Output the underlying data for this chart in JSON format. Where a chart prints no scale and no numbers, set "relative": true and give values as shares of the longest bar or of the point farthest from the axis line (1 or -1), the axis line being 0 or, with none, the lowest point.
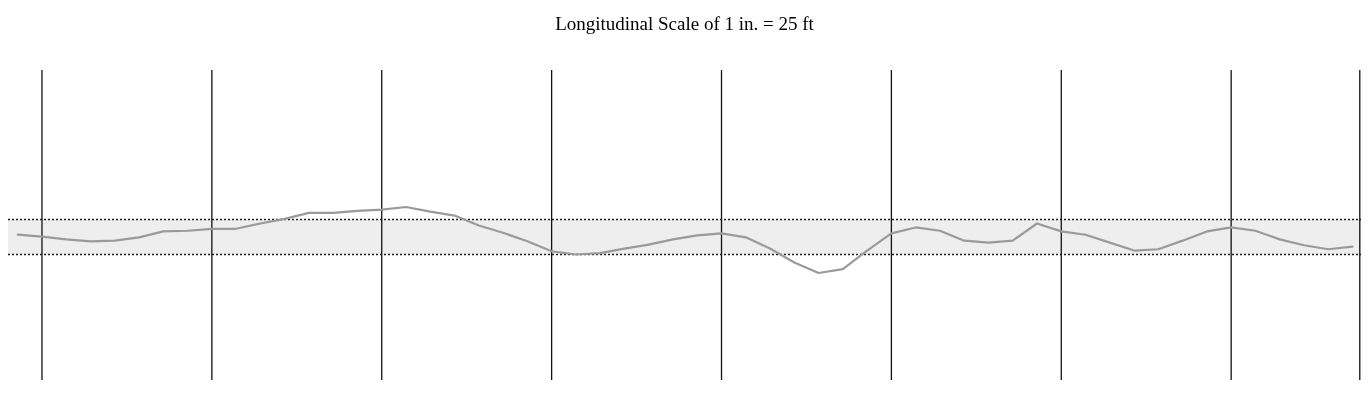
{
  "chart_data": {
    "type": "line",
    "title": "Longitudinal Scale of 1 in. = 25 ft",
    "relative": true,
    "categories": [
      null,
      null,
      null,
      null,
      null,
      null,
      null,
      null,
      null,
      null,
      null,
      null,
      null,
      null,
      null,
      null,
      null,
      null,
      null,
      null,
      null,
      null,
      null,
      null,
      null,
      null,
      null,
      null,
      null,
      null,
      null,
      null,
      null,
      null,
      null,
      null,
      null,
      null,
      null,
      null,
      null,
      null,
      null,
      null,
      null,
      null,
      null,
      null,
      null,
      null,
      null,
      null,
      null,
      null,
      null,
      null
    ],
    "bands": [
      {
        "axis": "y",
        "from": 0.28,
        "to": 0.81,
        "color": "#eeeeee"
      }
    ],
    "grid": "x",
    "ref_lines": [
      {
        "axis": "y",
        "value": 0.81,
        "color": "#222222",
        "line_style": "dotted"
      },
      {
        "axis": "y",
        "value": 0.28,
        "color": "#222222",
        "line_style": "dotted"
      }
    ],
    "series": [
      {
        "color": "#9a9a9a",
        "values": [
          0.58,
          0.55,
          0.51,
          0.48,
          0.49,
          0.54,
          0.63,
          0.64,
          0.67,
          0.67,
          0.75,
          0.82,
          0.91,
          0.91,
          0.94,
          0.96,
          1,
          0.93,
          0.87,
          0.72,
          0.61,
          0.48,
          0.33,
          0.28,
          0.3,
          0.37,
          0.43,
          0.51,
          0.57,
          0.6,
          0.54,
          0.37,
          0.16,
          0,
          0.06,
          0.34,
          0.6,
          0.69,
          0.64,
          0.49,
          0.46,
          0.49,
          0.75,
          0.63,
          0.58,
          0.46,
          0.34,
          0.36,
          0.49,
          0.63,
          0.69,
          0.64,
          0.51,
          0.42,
          0.36,
          0.4
        ]
      }
    ]
  }
}
